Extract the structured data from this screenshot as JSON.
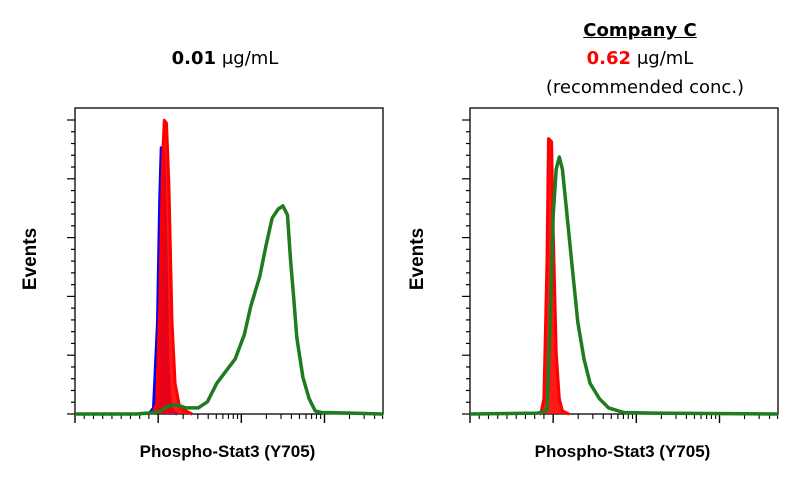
{
  "chart_data": [
    {
      "type": "area",
      "title_value": "0.01",
      "title_unit": "μg/mL",
      "xlabel": "Phospho-Stat3 (Y705)",
      "ylabel": "Events",
      "series": [
        {
          "color": "#0000ff",
          "values": [
            [
              0.24,
              0
            ],
            [
              0.255,
              0.02
            ],
            [
              0.268,
              0.3
            ],
            [
              0.275,
              0.7
            ],
            [
              0.28,
              0.87
            ],
            [
              0.288,
              0.86
            ],
            [
              0.295,
              0.55
            ],
            [
              0.302,
              0.15
            ],
            [
              0.31,
              0.02
            ],
            [
              0.33,
              0
            ]
          ]
        },
        {
          "color": "#ff0000",
          "values": [
            [
              0.25,
              0
            ],
            [
              0.265,
              0.03
            ],
            [
              0.275,
              0.35
            ],
            [
              0.285,
              0.85
            ],
            [
              0.29,
              0.96
            ],
            [
              0.297,
              0.95
            ],
            [
              0.305,
              0.75
            ],
            [
              0.315,
              0.3
            ],
            [
              0.325,
              0.1
            ],
            [
              0.34,
              0.02
            ],
            [
              0.38,
              0
            ]
          ]
        },
        {
          "color": "#1e7b1e",
          "values": [
            [
              0,
              0
            ],
            [
              0.2,
              0
            ],
            [
              0.26,
              0.005
            ],
            [
              0.28,
              0.01
            ],
            [
              0.3,
              0.025
            ],
            [
              0.33,
              0.03
            ],
            [
              0.36,
              0.02
            ],
            [
              0.4,
              0.02
            ],
            [
              0.43,
              0.04
            ],
            [
              0.46,
              0.1
            ],
            [
              0.49,
              0.14
            ],
            [
              0.52,
              0.18
            ],
            [
              0.55,
              0.26
            ],
            [
              0.57,
              0.35
            ],
            [
              0.6,
              0.45
            ],
            [
              0.62,
              0.55
            ],
            [
              0.64,
              0.64
            ],
            [
              0.66,
              0.67
            ],
            [
              0.675,
              0.68
            ],
            [
              0.69,
              0.65
            ],
            [
              0.7,
              0.5
            ],
            [
              0.71,
              0.38
            ],
            [
              0.72,
              0.25
            ],
            [
              0.74,
              0.12
            ],
            [
              0.76,
              0.05
            ],
            [
              0.78,
              0.01
            ],
            [
              0.8,
              0.005
            ],
            [
              0.9,
              0.003
            ],
            [
              1,
              0
            ]
          ]
        }
      ]
    },
    {
      "type": "area",
      "company": "Company C",
      "title_value": "0.62",
      "title_unit": "μg/mL",
      "note": "(recommended conc.)",
      "xlabel": "Phospho-Stat3 (Y705)",
      "ylabel": "Events",
      "series": [
        {
          "color": "#ff0000",
          "values": [
            [
              0.23,
              0
            ],
            [
              0.24,
              0.05
            ],
            [
              0.25,
              0.5
            ],
            [
              0.255,
              0.9
            ],
            [
              0.265,
              0.89
            ],
            [
              0.27,
              0.6
            ],
            [
              0.28,
              0.2
            ],
            [
              0.29,
              0.05
            ],
            [
              0.3,
              0.01
            ],
            [
              0.32,
              0
            ]
          ]
        },
        {
          "color": "#1e7b1e",
          "values": [
            [
              0,
              0
            ],
            [
              0.22,
              0.003
            ],
            [
              0.25,
              0.01
            ],
            [
              0.26,
              0.3
            ],
            [
              0.27,
              0.65
            ],
            [
              0.28,
              0.8
            ],
            [
              0.29,
              0.84
            ],
            [
              0.3,
              0.8
            ],
            [
              0.31,
              0.7
            ],
            [
              0.33,
              0.5
            ],
            [
              0.35,
              0.3
            ],
            [
              0.37,
              0.18
            ],
            [
              0.39,
              0.1
            ],
            [
              0.42,
              0.05
            ],
            [
              0.45,
              0.02
            ],
            [
              0.5,
              0.005
            ],
            [
              0.6,
              0.003
            ],
            [
              1,
              0
            ]
          ]
        }
      ]
    }
  ]
}
